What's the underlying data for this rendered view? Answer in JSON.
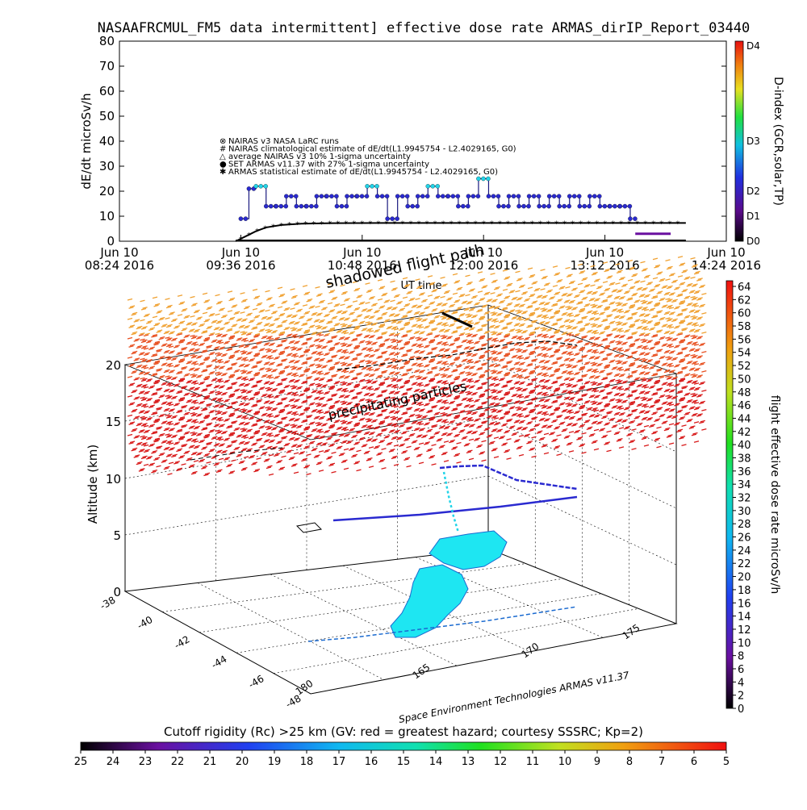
{
  "header": {
    "title": "NASAAFRCMUL_FM5 data intermittent] effective dose rate ARMAS_dirIP_Report_03440"
  },
  "chart_data": [
    {
      "type": "line",
      "ylabel": "dE/dt microSv/h",
      "xlabel": "UT time",
      "ylim": [
        0,
        80
      ],
      "yticks": [
        "0",
        "10",
        "20",
        "30",
        "40",
        "50",
        "60",
        "70",
        "80"
      ],
      "xticks": [
        {
          "line1": "Jun 10",
          "line2": "08:24 2016"
        },
        {
          "line1": "Jun 10",
          "line2": "09:36 2016"
        },
        {
          "line1": "Jun 10",
          "line2": "10:48 2016"
        },
        {
          "line1": "Jun 10",
          "line2": "12:00 2016"
        },
        {
          "line1": "Jun 10",
          "line2": "13:12 2016"
        },
        {
          "line1": "Jun 10",
          "line2": "14:24 2016"
        }
      ],
      "xlim_hours": [
        8.4,
        14.4
      ],
      "legend": [
        "NAIRAS v3 NASA LaRC runs",
        "NAIRAS climatological estimate of dE/dt(L1.9945754 - L2.4029165, G0)",
        "average NAIRAS v3 10% 1-sigma uncertainty",
        "SET ARMAS v11.37 with 27% 1-sigma uncertainty",
        "ARMAS statistical estimate of dE/dt(L1.9945754 - L2.4029165, G0)"
      ],
      "legend_position": "center",
      "series": [
        {
          "name": "SET ARMAS v11.37 with 27% 1-sigma uncertainty",
          "x": [
            9.6,
            9.68,
            9.75,
            9.85,
            9.95,
            10.05,
            10.15,
            10.25,
            10.35,
            10.45,
            10.55,
            10.65,
            10.75,
            10.85,
            10.95,
            11.05,
            11.15,
            11.25,
            11.35,
            11.45,
            11.55,
            11.65,
            11.75,
            11.85,
            11.95,
            12.05,
            12.15,
            12.25,
            12.35,
            12.45,
            12.55,
            12.65,
            12.75,
            12.85,
            12.95,
            13.05,
            13.15,
            13.25,
            13.35,
            13.45
          ],
          "y": [
            9,
            21,
            22,
            14,
            14,
            18,
            14,
            14,
            18,
            18,
            14,
            18,
            18,
            22,
            18,
            9,
            18,
            14,
            18,
            22,
            18,
            18,
            14,
            18,
            25,
            18,
            14,
            18,
            14,
            18,
            14,
            18,
            14,
            18,
            14,
            18,
            14,
            14,
            14,
            9
          ]
        },
        {
          "name": "ARMAS statistical estimate of dE/dt(L1.9945754 - L2.4029165, G0)",
          "x": [
            9.55,
            9.65,
            9.75,
            9.85,
            10.0,
            10.2,
            10.5,
            11.0,
            12.0,
            13.0,
            14.0
          ],
          "y": [
            0,
            2,
            4,
            5.5,
            6.5,
            7,
            7.2,
            7.3,
            7.3,
            7.3,
            7.3
          ]
        }
      ],
      "colorbar": {
        "label": "D-index (GCR,solar,TP)",
        "ticks": [
          "D0",
          "D1",
          "D2",
          "D3",
          "D4"
        ]
      }
    },
    {
      "type": "scatter",
      "title": "shadowed flight path",
      "annotation": "precipitating particles",
      "zlabel": "Altitude (km)",
      "zticks": [
        "0",
        "5",
        "10",
        "15",
        "20"
      ],
      "lat_ticks": [
        "-38",
        "-40",
        "-42",
        "-44",
        "-46",
        "-48"
      ],
      "lon_ticks": [
        "165",
        "170",
        "175"
      ],
      "lon_edge_label": "180",
      "credit": "Space Environment Technologies ARMAS v11.37",
      "right_colorbar": {
        "label": "flight effective dose rate microSv/h",
        "ticks": [
          "0",
          "2",
          "4",
          "6",
          "8",
          "10",
          "12",
          "14",
          "16",
          "18",
          "20",
          "22",
          "24",
          "26",
          "28",
          "30",
          "32",
          "34",
          "36",
          "38",
          "40",
          "42",
          "44",
          "46",
          "48",
          "50",
          "52",
          "54",
          "56",
          "58",
          "60",
          "62",
          "64"
        ]
      },
      "bottom_colorbar": {
        "label": "Cutoff rigidity (Rc) >25 km (GV: red = greatest hazard; courtesy SSSRC; Kp=2)",
        "ticks": [
          "25",
          "24",
          "23",
          "22",
          "21",
          "20",
          "19",
          "18",
          "17",
          "16",
          "15",
          "14",
          "13",
          "12",
          "11",
          "10",
          "9",
          "8",
          "7",
          "6",
          "5"
        ]
      }
    }
  ],
  "colors": {
    "flight_blue": "#2a2ad0",
    "flight_cyan": "#22d4e8",
    "land": "#1ee6f2",
    "statistical": "#000000"
  }
}
